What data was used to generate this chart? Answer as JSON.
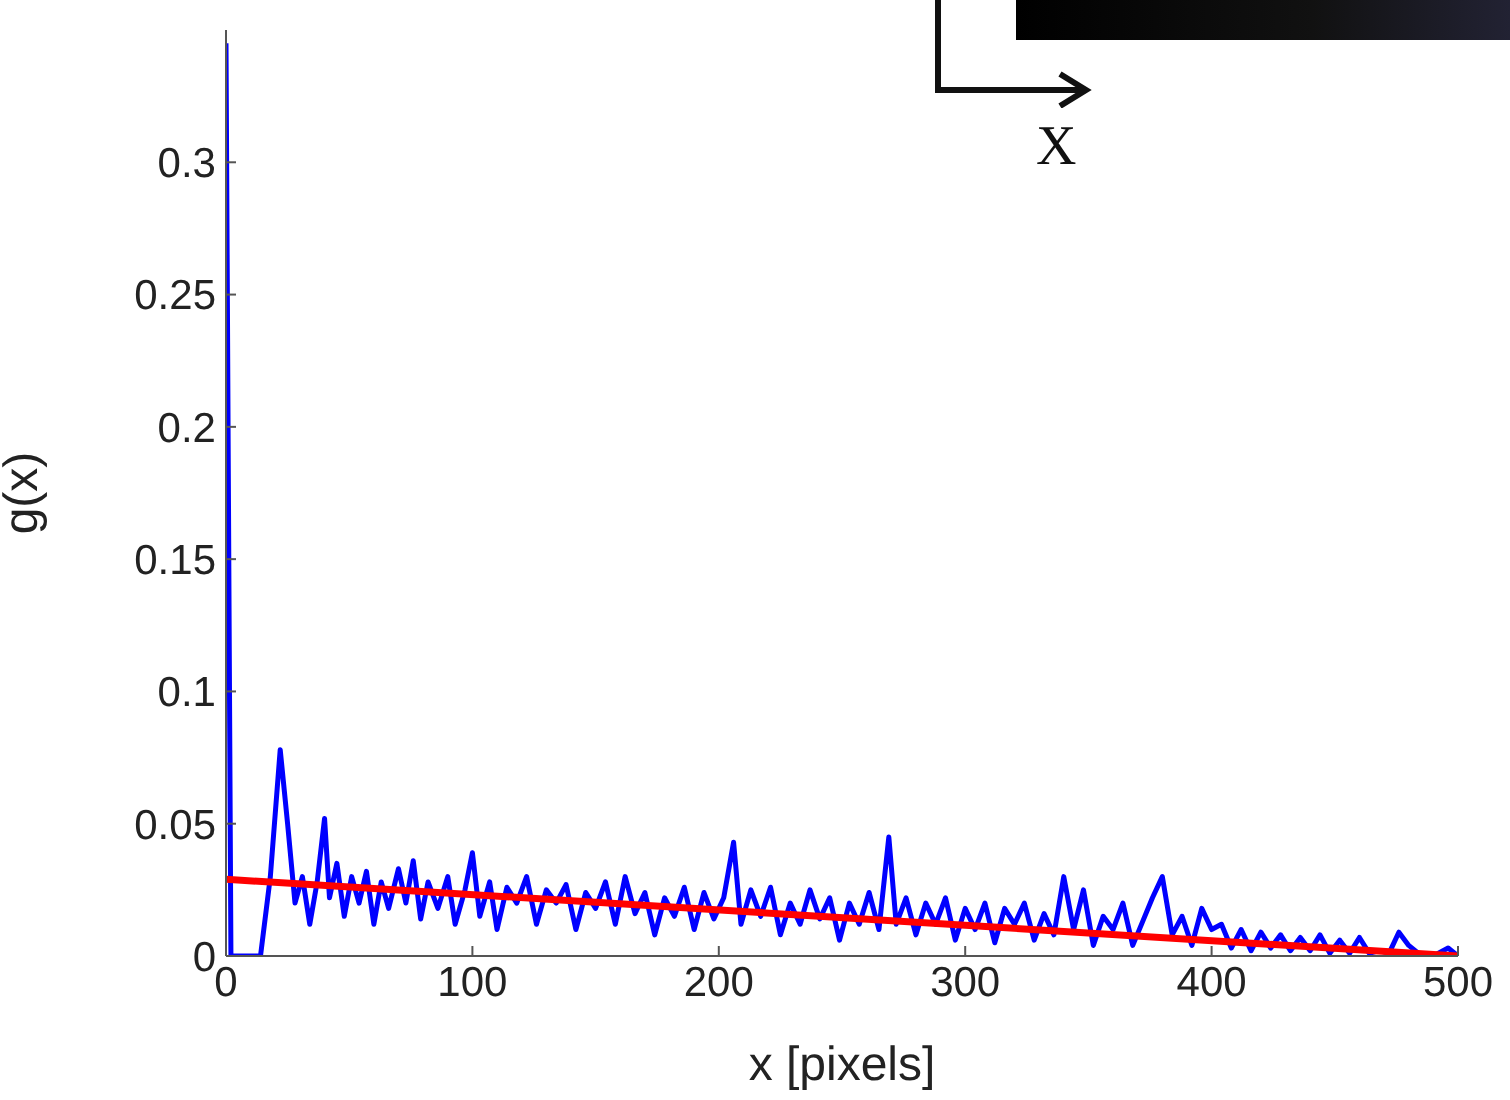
{
  "chart_data": {
    "type": "line",
    "xlabel": "x [pixels]",
    "ylabel": "g(x)",
    "annotations": [
      "X"
    ],
    "xlim": [
      0,
      500
    ],
    "xticks": [
      0,
      100,
      200,
      300,
      400,
      500
    ],
    "ylim": [
      0,
      0.35
    ],
    "yticks": [
      0,
      0.05,
      0.1,
      0.15,
      0.2,
      0.25,
      0.3
    ],
    "grid": false,
    "legend": false,
    "marker": "none",
    "line_style": "solid",
    "series": [
      {
        "color": "#0000ff",
        "x": [
          0,
          2,
          14,
          18,
          22,
          25,
          28,
          31,
          34,
          37,
          40,
          42,
          45,
          48,
          51,
          54,
          57,
          60,
          63,
          66,
          70,
          73,
          76,
          79,
          82,
          86,
          90,
          93,
          97,
          100,
          103,
          107,
          110,
          114,
          118,
          122,
          126,
          130,
          134,
          138,
          142,
          146,
          150,
          154,
          158,
          162,
          166,
          170,
          174,
          178,
          182,
          186,
          190,
          194,
          198,
          202,
          206,
          209,
          213,
          217,
          221,
          225,
          229,
          233,
          237,
          241,
          245,
          249,
          253,
          257,
          261,
          265,
          269,
          272,
          276,
          280,
          284,
          288,
          292,
          296,
          300,
          304,
          308,
          312,
          316,
          320,
          324,
          328,
          332,
          336,
          340,
          344,
          348,
          352,
          356,
          360,
          364,
          368,
          372,
          376,
          380,
          384,
          388,
          392,
          396,
          400,
          404,
          408,
          412,
          416,
          420,
          424,
          428,
          432,
          436,
          440,
          444,
          448,
          452,
          456,
          460,
          464,
          468,
          472,
          476,
          480,
          484,
          490,
          496,
          500
        ],
        "values": [
          0.345,
          0,
          0,
          0.03,
          0.078,
          0.05,
          0.02,
          0.03,
          0.012,
          0.028,
          0.052,
          0.022,
          0.035,
          0.015,
          0.03,
          0.02,
          0.032,
          0.012,
          0.028,
          0.018,
          0.033,
          0.02,
          0.036,
          0.014,
          0.028,
          0.018,
          0.03,
          0.012,
          0.025,
          0.039,
          0.015,
          0.028,
          0.01,
          0.026,
          0.02,
          0.03,
          0.012,
          0.025,
          0.02,
          0.027,
          0.01,
          0.024,
          0.018,
          0.028,
          0.012,
          0.03,
          0.016,
          0.024,
          0.008,
          0.022,
          0.015,
          0.026,
          0.01,
          0.024,
          0.014,
          0.022,
          0.043,
          0.012,
          0.025,
          0.015,
          0.026,
          0.008,
          0.02,
          0.012,
          0.025,
          0.014,
          0.022,
          0.006,
          0.02,
          0.012,
          0.024,
          0.01,
          0.045,
          0.012,
          0.022,
          0.008,
          0.02,
          0.012,
          0.022,
          0.006,
          0.018,
          0.01,
          0.02,
          0.005,
          0.018,
          0.012,
          0.02,
          0.006,
          0.016,
          0.008,
          0.03,
          0.01,
          0.025,
          0.004,
          0.015,
          0.01,
          0.02,
          0.004,
          0.013,
          0.022,
          0.03,
          0.008,
          0.015,
          0.004,
          0.018,
          0.01,
          0.012,
          0.003,
          0.01,
          0.002,
          0.009,
          0.003,
          0.008,
          0.002,
          0.007,
          0.002,
          0.008,
          0.001,
          0.006,
          0.001,
          0.007,
          0.001,
          0.002,
          0.001,
          0.009,
          0.004,
          0.001,
          0,
          0.003,
          0
        ]
      },
      {
        "type": "line",
        "color": "#ff0000",
        "x": [
          0,
          500
        ],
        "values": [
          0.029,
          0
        ]
      }
    ]
  }
}
